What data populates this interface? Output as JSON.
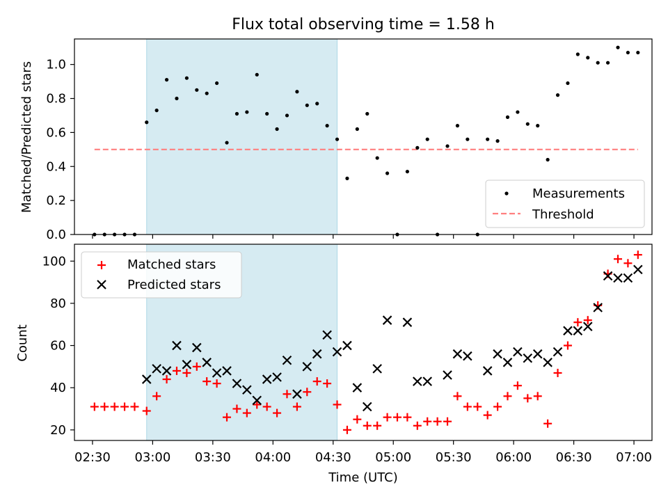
{
  "chart_data": [
    {
      "type": "scatter",
      "title": "Flux total observing time = 1.58 h",
      "ylabel": "Matched/Predicted stars",
      "xlabel": "",
      "x_unit": "time (UTC)",
      "xlim": [
        "02:21",
        "07:09"
      ],
      "ylim": [
        0.0,
        1.15
      ],
      "yticks": [
        "0.0",
        "0.2",
        "0.4",
        "0.6",
        "0.8",
        "1.0"
      ],
      "shaded_span": {
        "start": "02:57",
        "end": "04:32",
        "color": "#add8e6"
      },
      "legend_position": "lower-right",
      "grid": false,
      "series": [
        {
          "name": "Measurements",
          "kind": "points",
          "color": "#000000",
          "points": [
            [
              "02:31",
              0.0
            ],
            [
              "02:36",
              0.0
            ],
            [
              "02:41",
              0.0
            ],
            [
              "02:46",
              0.0
            ],
            [
              "02:51",
              0.0
            ],
            [
              "02:57",
              0.66
            ],
            [
              "03:02",
              0.73
            ],
            [
              "03:07",
              0.91
            ],
            [
              "03:12",
              0.8
            ],
            [
              "03:17",
              0.92
            ],
            [
              "03:22",
              0.85
            ],
            [
              "03:27",
              0.83
            ],
            [
              "03:32",
              0.89
            ],
            [
              "03:37",
              0.54
            ],
            [
              "03:42",
              0.71
            ],
            [
              "03:47",
              0.72
            ],
            [
              "03:52",
              0.94
            ],
            [
              "03:57",
              0.71
            ],
            [
              "04:02",
              0.62
            ],
            [
              "04:07",
              0.7
            ],
            [
              "04:12",
              0.84
            ],
            [
              "04:17",
              0.76
            ],
            [
              "04:22",
              0.77
            ],
            [
              "04:27",
              0.64
            ],
            [
              "04:32",
              0.56
            ],
            [
              "04:37",
              0.33
            ],
            [
              "04:42",
              0.62
            ],
            [
              "04:47",
              0.71
            ],
            [
              "04:52",
              0.45
            ],
            [
              "04:57",
              0.36
            ],
            [
              "05:02",
              0.0
            ],
            [
              "05:07",
              0.37
            ],
            [
              "05:12",
              0.51
            ],
            [
              "05:17",
              0.56
            ],
            [
              "05:22",
              0.0
            ],
            [
              "05:27",
              0.52
            ],
            [
              "05:32",
              0.64
            ],
            [
              "05:37",
              0.56
            ],
            [
              "05:42",
              0.0
            ],
            [
              "05:47",
              0.56
            ],
            [
              "05:52",
              0.55
            ],
            [
              "05:57",
              0.69
            ],
            [
              "06:02",
              0.72
            ],
            [
              "06:07",
              0.65
            ],
            [
              "06:12",
              0.64
            ],
            [
              "06:17",
              0.44
            ],
            [
              "06:22",
              0.82
            ],
            [
              "06:27",
              0.89
            ],
            [
              "06:32",
              1.06
            ],
            [
              "06:37",
              1.04
            ],
            [
              "06:42",
              1.01
            ],
            [
              "06:47",
              1.01
            ],
            [
              "06:52",
              1.1
            ],
            [
              "06:57",
              1.07
            ],
            [
              "07:02",
              1.07
            ]
          ]
        },
        {
          "name": "Threshold",
          "kind": "hline",
          "color": "#ff7f7f",
          "y": 0.5,
          "x_range": [
            "02:31",
            "07:02"
          ]
        }
      ]
    },
    {
      "type": "scatter",
      "title": "",
      "ylabel": "Count",
      "xlabel": "Time (UTC)",
      "x_unit": "time (UTC)",
      "xlim": [
        "02:21",
        "07:09"
      ],
      "ylim": [
        15,
        108
      ],
      "xticks": [
        "02:30",
        "03:00",
        "03:30",
        "04:00",
        "04:30",
        "05:00",
        "05:30",
        "06:00",
        "06:30",
        "07:00"
      ],
      "yticks": [
        "20",
        "40",
        "60",
        "80",
        "100"
      ],
      "shaded_span": {
        "start": "02:57",
        "end": "04:32",
        "color": "#add8e6"
      },
      "legend_position": "upper-left",
      "grid": false,
      "series": [
        {
          "name": "Matched stars",
          "marker": "plus",
          "color": "#ff0000",
          "points": [
            [
              "02:31",
              31
            ],
            [
              "02:36",
              31
            ],
            [
              "02:41",
              31
            ],
            [
              "02:46",
              31
            ],
            [
              "02:51",
              31
            ],
            [
              "02:57",
              29
            ],
            [
              "03:02",
              36
            ],
            [
              "03:07",
              44
            ],
            [
              "03:12",
              48
            ],
            [
              "03:17",
              47
            ],
            [
              "03:22",
              50
            ],
            [
              "03:27",
              43
            ],
            [
              "03:32",
              42
            ],
            [
              "03:37",
              26
            ],
            [
              "03:42",
              30
            ],
            [
              "03:47",
              28
            ],
            [
              "03:52",
              32
            ],
            [
              "03:57",
              31
            ],
            [
              "04:02",
              28
            ],
            [
              "04:07",
              37
            ],
            [
              "04:12",
              31
            ],
            [
              "04:17",
              38
            ],
            [
              "04:22",
              43
            ],
            [
              "04:27",
              42
            ],
            [
              "04:32",
              32
            ],
            [
              "04:37",
              20
            ],
            [
              "04:42",
              25
            ],
            [
              "04:47",
              22
            ],
            [
              "04:52",
              22
            ],
            [
              "04:57",
              26
            ],
            [
              "05:02",
              26
            ],
            [
              "05:07",
              26
            ],
            [
              "05:12",
              22
            ],
            [
              "05:17",
              24
            ],
            [
              "05:22",
              24
            ],
            [
              "05:27",
              24
            ],
            [
              "05:32",
              36
            ],
            [
              "05:37",
              31
            ],
            [
              "05:42",
              31
            ],
            [
              "05:47",
              27
            ],
            [
              "05:52",
              31
            ],
            [
              "05:57",
              36
            ],
            [
              "06:02",
              41
            ],
            [
              "06:07",
              35
            ],
            [
              "06:12",
              36
            ],
            [
              "06:17",
              23
            ],
            [
              "06:22",
              47
            ],
            [
              "06:27",
              60
            ],
            [
              "06:32",
              71
            ],
            [
              "06:37",
              72
            ],
            [
              "06:42",
              79
            ],
            [
              "06:47",
              94
            ],
            [
              "06:52",
              101
            ],
            [
              "06:57",
              99
            ],
            [
              "07:02",
              103
            ]
          ]
        },
        {
          "name": "Predicted stars",
          "marker": "x",
          "color": "#000000",
          "points": [
            [
              "02:57",
              44
            ],
            [
              "03:02",
              49
            ],
            [
              "03:07",
              48
            ],
            [
              "03:12",
              60
            ],
            [
              "03:17",
              51
            ],
            [
              "03:22",
              59
            ],
            [
              "03:27",
              52
            ],
            [
              "03:32",
              47
            ],
            [
              "03:37",
              48
            ],
            [
              "03:42",
              42
            ],
            [
              "03:47",
              39
            ],
            [
              "03:52",
              34
            ],
            [
              "03:57",
              44
            ],
            [
              "04:02",
              45
            ],
            [
              "04:07",
              53
            ],
            [
              "04:12",
              37
            ],
            [
              "04:17",
              50
            ],
            [
              "04:22",
              56
            ],
            [
              "04:27",
              65
            ],
            [
              "04:32",
              57
            ],
            [
              "04:37",
              60
            ],
            [
              "04:42",
              40
            ],
            [
              "04:47",
              31
            ],
            [
              "04:52",
              49
            ],
            [
              "04:57",
              72
            ],
            [
              "05:07",
              71
            ],
            [
              "05:12",
              43
            ],
            [
              "05:17",
              43
            ],
            [
              "05:27",
              46
            ],
            [
              "05:32",
              56
            ],
            [
              "05:37",
              55
            ],
            [
              "05:47",
              48
            ],
            [
              "05:52",
              56
            ],
            [
              "05:57",
              52
            ],
            [
              "06:02",
              57
            ],
            [
              "06:07",
              54
            ],
            [
              "06:12",
              56
            ],
            [
              "06:17",
              52
            ],
            [
              "06:22",
              57
            ],
            [
              "06:27",
              67
            ],
            [
              "06:32",
              67
            ],
            [
              "06:37",
              69
            ],
            [
              "06:42",
              78
            ],
            [
              "06:47",
              93
            ],
            [
              "06:52",
              92
            ],
            [
              "06:57",
              92
            ],
            [
              "07:02",
              96
            ]
          ]
        }
      ]
    }
  ]
}
